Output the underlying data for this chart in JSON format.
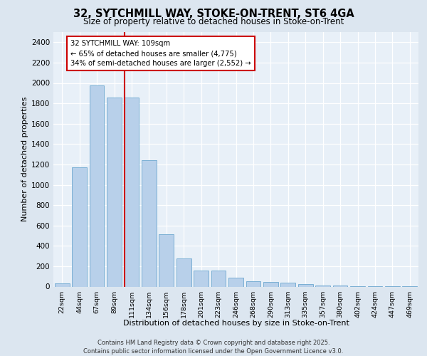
{
  "title": "32, SYTCHMILL WAY, STOKE-ON-TRENT, ST6 4GA",
  "subtitle": "Size of property relative to detached houses in Stoke-on-Trent",
  "xlabel": "Distribution of detached houses by size in Stoke-on-Trent",
  "ylabel": "Number of detached properties",
  "bar_labels": [
    "22sqm",
    "44sqm",
    "67sqm",
    "89sqm",
    "111sqm",
    "134sqm",
    "156sqm",
    "178sqm",
    "201sqm",
    "223sqm",
    "246sqm",
    "268sqm",
    "290sqm",
    "313sqm",
    "335sqm",
    "357sqm",
    "380sqm",
    "402sqm",
    "424sqm",
    "447sqm",
    "469sqm"
  ],
  "bar_values": [
    28,
    1170,
    1975,
    1855,
    1855,
    1240,
    515,
    275,
    155,
    155,
    90,
    50,
    45,
    35,
    25,
    10,
    8,
    5,
    4,
    3,
    2
  ],
  "bar_color": "#b8d0ea",
  "bar_edge_color": "#7aafd4",
  "vline_color": "#cc0000",
  "vline_x_index": 4,
  "annotation_text": "32 SYTCHMILL WAY: 109sqm\n← 65% of detached houses are smaller (4,775)\n34% of semi-detached houses are larger (2,552) →",
  "annotation_box_color": "#ffffff",
  "annotation_edge_color": "#cc0000",
  "ylim": [
    0,
    2500
  ],
  "yticks": [
    0,
    200,
    400,
    600,
    800,
    1000,
    1200,
    1400,
    1600,
    1800,
    2000,
    2200,
    2400
  ],
  "bg_color": "#dce6f0",
  "plot_bg_color": "#e8f0f8",
  "title_fontsize": 10.5,
  "subtitle_fontsize": 8.5,
  "footer_line1": "Contains HM Land Registry data © Crown copyright and database right 2025.",
  "footer_line2": "Contains public sector information licensed under the Open Government Licence v3.0."
}
